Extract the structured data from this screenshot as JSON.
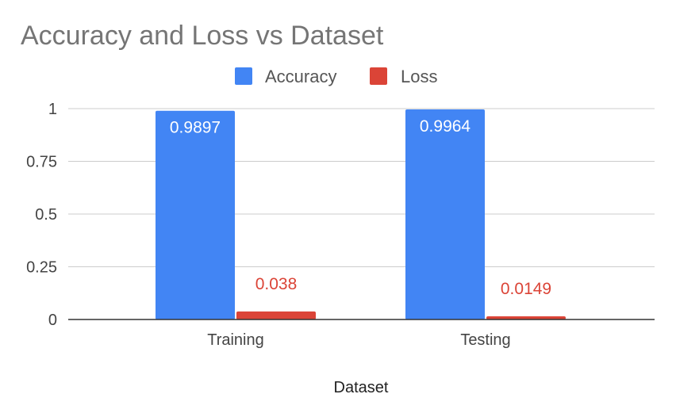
{
  "chart_data": {
    "type": "bar",
    "title": "Accuracy and Loss vs Dataset",
    "xlabel": "Dataset",
    "ylabel": "",
    "categories": [
      "Training",
      "Testing"
    ],
    "series": [
      {
        "name": "Accuracy",
        "values": [
          0.9897,
          0.9964
        ],
        "color": "#4285f4",
        "labels": [
          "0.9897",
          "0.9964"
        ],
        "label_color": "#ffffff"
      },
      {
        "name": "Loss",
        "values": [
          0.038,
          0.0149
        ],
        "color": "#db4437",
        "labels": [
          "0.038",
          "0.0149"
        ],
        "label_color": "#db4437"
      }
    ],
    "ylim": [
      0,
      1
    ],
    "yticks": [
      0,
      0.25,
      0.5,
      0.75,
      1
    ],
    "ytick_labels": [
      "0",
      "0.25",
      "0.5",
      "0.75",
      "1"
    ],
    "grid": true,
    "legend_position": "top-center"
  }
}
